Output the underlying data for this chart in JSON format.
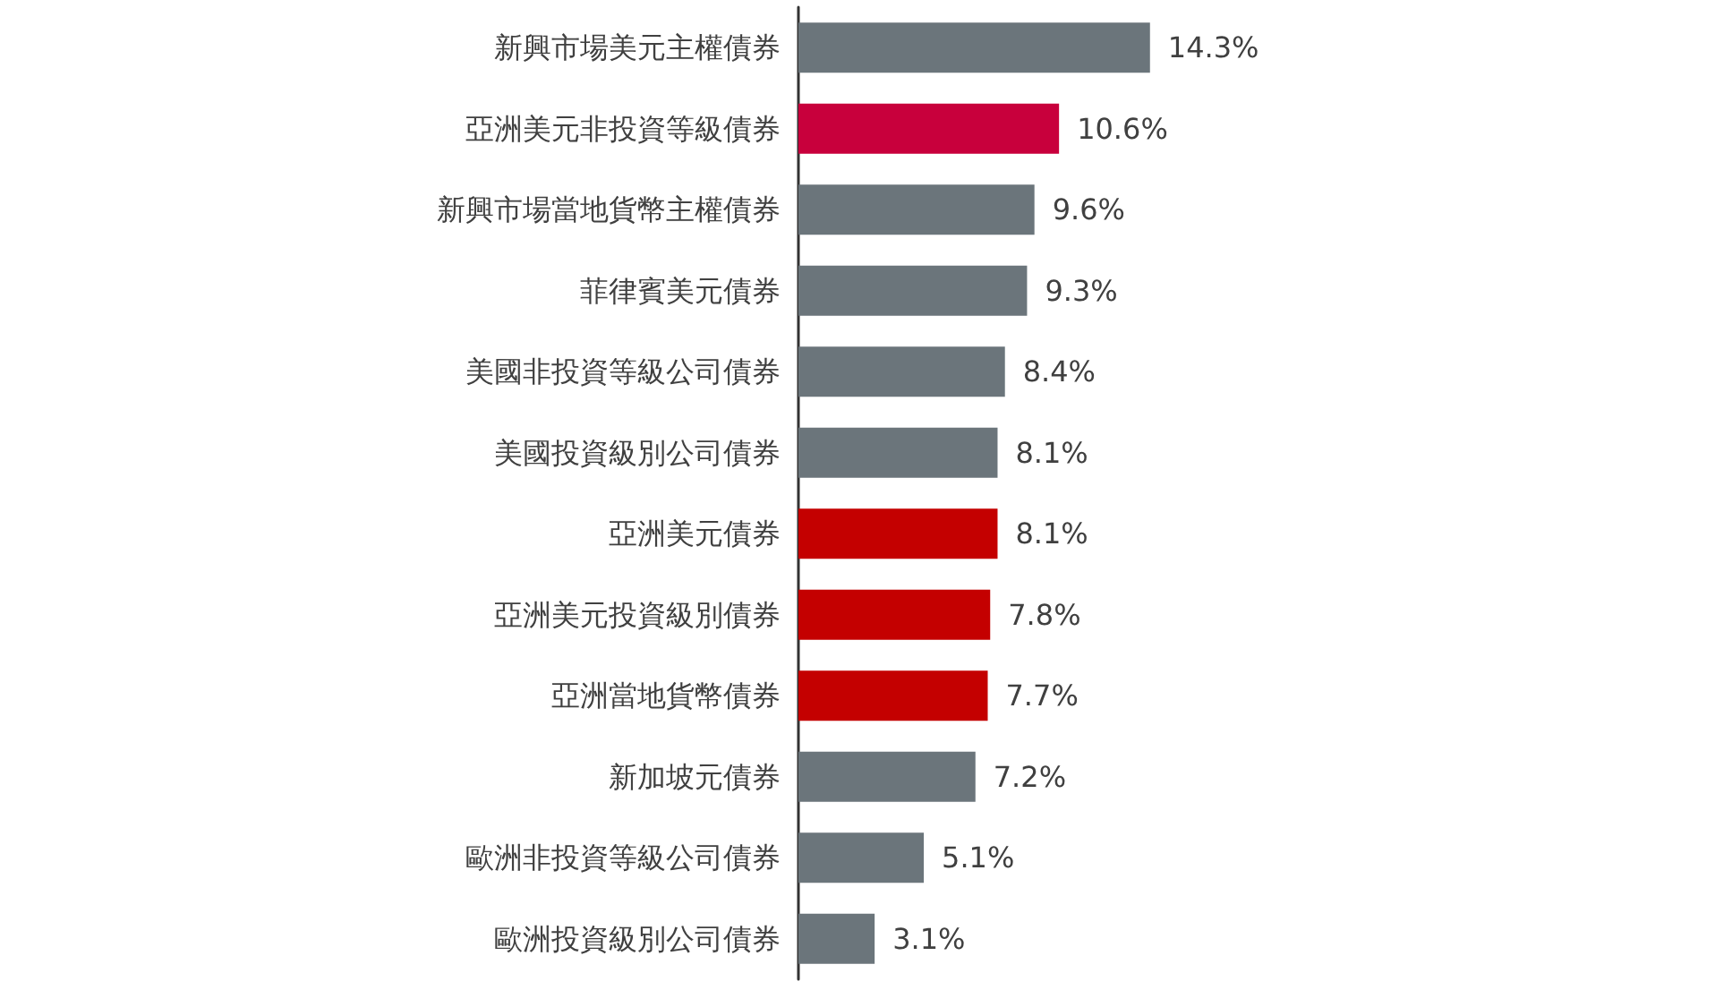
{
  "chart_data": {
    "type": "bar",
    "orientation": "horizontal",
    "categories": [
      "新興市場美元主權債券",
      "亞洲美元非投資等級債券",
      "新興市場當地貨幣主權債券",
      "菲律賓美元債券",
      "美國非投資等級公司債券",
      "美國投資級別公司債券",
      "亞洲美元債券",
      "亞洲美元投資級別債券",
      "亞洲當地貨幣債券",
      "新加坡元債券",
      "歐洲非投資等級公司債券",
      "歐洲投資級別公司債券"
    ],
    "values": [
      14.3,
      10.6,
      9.6,
      9.3,
      8.4,
      8.1,
      8.1,
      7.8,
      7.7,
      7.2,
      5.1,
      3.1
    ],
    "value_labels": [
      "14.3%",
      "10.6%",
      "9.6%",
      "9.3%",
      "8.4%",
      "8.1%",
      "8.1%",
      "7.8%",
      "7.7%",
      "7.2%",
      "5.1%",
      "3.1%"
    ],
    "colors": [
      "#6b757b",
      "#c8003c",
      "#6b757b",
      "#6b757b",
      "#6b757b",
      "#6b757b",
      "#c40000",
      "#c40000",
      "#c40000",
      "#6b757b",
      "#6b757b",
      "#6b757b"
    ]
  }
}
